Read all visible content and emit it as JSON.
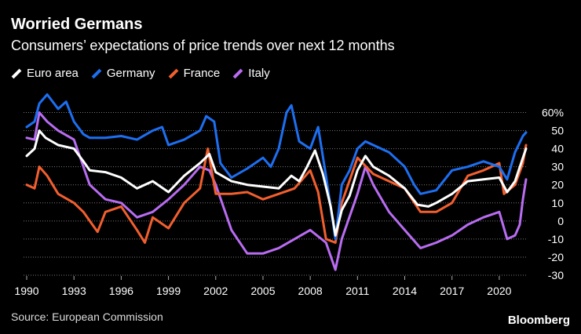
{
  "header": {
    "title": "Worried Germans",
    "subtitle": "Consumers’ expectations of price trends over next 12 months"
  },
  "footer": {
    "source": "Source: European Commission",
    "brand": "Bloomberg"
  },
  "chart_data": {
    "type": "line",
    "title": "Worried Germans",
    "subtitle": "Consumers’ expectations of price trends over next 12 months",
    "xlabel": "",
    "ylabel": "",
    "xlim": [
      1989.8,
      2021.8
    ],
    "ylim": [
      -30,
      65
    ],
    "x_ticks": [
      1990,
      1993,
      1996,
      1999,
      2002,
      2005,
      2008,
      2011,
      2014,
      2017,
      2020
    ],
    "x_tick_labels": [
      "1990",
      "1993",
      "1996",
      "1999",
      "2002",
      "2005",
      "2008",
      "2011",
      "2014",
      "2017",
      "2020"
    ],
    "y_ticks": [
      -30,
      -20,
      -10,
      0,
      10,
      20,
      30,
      40,
      50,
      60
    ],
    "y_tick_labels": [
      "-30",
      "-20",
      "-10",
      "0",
      "10",
      "20",
      "30",
      "40",
      "50",
      "60%"
    ],
    "grid": true,
    "legend_position": "top-left",
    "series": [
      {
        "name": "Euro area",
        "color": "#ffffff",
        "points": [
          [
            1990,
            36
          ],
          [
            1990.5,
            40
          ],
          [
            1990.8,
            50
          ],
          [
            1991.2,
            46
          ],
          [
            1992,
            42
          ],
          [
            1993,
            40
          ],
          [
            1993.6,
            33
          ],
          [
            1994,
            28
          ],
          [
            1995,
            27
          ],
          [
            1996,
            24
          ],
          [
            1997,
            18
          ],
          [
            1998,
            22
          ],
          [
            1999,
            16
          ],
          [
            2000,
            25
          ],
          [
            2001,
            32
          ],
          [
            2001.6,
            37
          ],
          [
            2002,
            27
          ],
          [
            2003,
            22
          ],
          [
            2004,
            20
          ],
          [
            2005,
            19
          ],
          [
            2006,
            18
          ],
          [
            2006.8,
            25
          ],
          [
            2007.3,
            22
          ],
          [
            2007.8,
            30
          ],
          [
            2008.3,
            39
          ],
          [
            2008.8,
            26
          ],
          [
            2009.3,
            8
          ],
          [
            2009.6,
            -8
          ],
          [
            2010,
            6
          ],
          [
            2010.5,
            14
          ],
          [
            2011,
            28
          ],
          [
            2011.5,
            36
          ],
          [
            2012,
            30
          ],
          [
            2013,
            25
          ],
          [
            2014,
            18
          ],
          [
            2014.8,
            9
          ],
          [
            2015.5,
            8
          ],
          [
            2016,
            10
          ],
          [
            2017,
            15
          ],
          [
            2018,
            22
          ],
          [
            2019,
            23
          ],
          [
            2020,
            24
          ],
          [
            2020.5,
            16
          ],
          [
            2021,
            22
          ],
          [
            2021.5,
            35
          ],
          [
            2021.7,
            40
          ]
        ]
      },
      {
        "name": "Germany",
        "color": "#1d6ff2",
        "points": [
          [
            1990,
            52
          ],
          [
            1990.5,
            55
          ],
          [
            1990.8,
            65
          ],
          [
            1991.3,
            70
          ],
          [
            1992,
            62
          ],
          [
            1992.5,
            66
          ],
          [
            1993,
            55
          ],
          [
            1993.6,
            48
          ],
          [
            1994,
            46
          ],
          [
            1995,
            46
          ],
          [
            1996,
            47
          ],
          [
            1997,
            45
          ],
          [
            1998,
            50
          ],
          [
            1998.6,
            52
          ],
          [
            1999,
            42
          ],
          [
            2000,
            45
          ],
          [
            2001,
            50
          ],
          [
            2001.4,
            58
          ],
          [
            2001.9,
            55
          ],
          [
            2002.3,
            32
          ],
          [
            2003,
            24
          ],
          [
            2004,
            29
          ],
          [
            2005,
            35
          ],
          [
            2005.5,
            30
          ],
          [
            2006,
            40
          ],
          [
            2006.5,
            60
          ],
          [
            2006.8,
            64
          ],
          [
            2007.3,
            44
          ],
          [
            2008,
            40
          ],
          [
            2008.5,
            52
          ],
          [
            2009,
            25
          ],
          [
            2009.6,
            -10
          ],
          [
            2010,
            20
          ],
          [
            2010.5,
            28
          ],
          [
            2011,
            40
          ],
          [
            2011.5,
            44
          ],
          [
            2012,
            42
          ],
          [
            2013,
            38
          ],
          [
            2014,
            30
          ],
          [
            2014.6,
            20
          ],
          [
            2015,
            15
          ],
          [
            2016,
            17
          ],
          [
            2017,
            28
          ],
          [
            2018,
            30
          ],
          [
            2019,
            33
          ],
          [
            2020,
            30
          ],
          [
            2020.5,
            23
          ],
          [
            2021,
            38
          ],
          [
            2021.5,
            47
          ],
          [
            2021.7,
            49
          ]
        ]
      },
      {
        "name": "France",
        "color": "#f25f2e",
        "points": [
          [
            1990,
            20
          ],
          [
            1990.5,
            18
          ],
          [
            1990.8,
            30
          ],
          [
            1991.3,
            25
          ],
          [
            1992,
            15
          ],
          [
            1993,
            10
          ],
          [
            1993.6,
            5
          ],
          [
            1994,
            0
          ],
          [
            1994.5,
            -6
          ],
          [
            1995,
            5
          ],
          [
            1996,
            8
          ],
          [
            1997,
            -5
          ],
          [
            1997.5,
            -12
          ],
          [
            1998,
            2
          ],
          [
            1999,
            -4
          ],
          [
            2000,
            10
          ],
          [
            2001,
            18
          ],
          [
            2001.5,
            40
          ],
          [
            2002,
            15
          ],
          [
            2003,
            15
          ],
          [
            2004,
            16
          ],
          [
            2005,
            12
          ],
          [
            2006,
            15
          ],
          [
            2007,
            18
          ],
          [
            2008,
            28
          ],
          [
            2008.5,
            16
          ],
          [
            2009,
            -10
          ],
          [
            2009.6,
            -12
          ],
          [
            2010,
            10
          ],
          [
            2011,
            35
          ],
          [
            2012,
            26
          ],
          [
            2013,
            22
          ],
          [
            2014,
            18
          ],
          [
            2015,
            5
          ],
          [
            2016,
            5
          ],
          [
            2017,
            10
          ],
          [
            2018,
            25
          ],
          [
            2019,
            28
          ],
          [
            2020,
            32
          ],
          [
            2020.3,
            15
          ],
          [
            2021,
            20
          ],
          [
            2021.5,
            32
          ],
          [
            2021.7,
            42
          ]
        ]
      },
      {
        "name": "Italy",
        "color": "#b96cf2",
        "points": [
          [
            1990,
            46
          ],
          [
            1990.5,
            45
          ],
          [
            1990.8,
            60
          ],
          [
            1991.3,
            55
          ],
          [
            1992,
            50
          ],
          [
            1993,
            45
          ],
          [
            1994,
            20
          ],
          [
            1995,
            12
          ],
          [
            1996,
            10
          ],
          [
            1997,
            2
          ],
          [
            1998,
            5
          ],
          [
            1999,
            12
          ],
          [
            2000,
            20
          ],
          [
            2001,
            30
          ],
          [
            2001.6,
            28
          ],
          [
            2002,
            20
          ],
          [
            2003,
            -5
          ],
          [
            2004,
            -18
          ],
          [
            2005,
            -18
          ],
          [
            2006,
            -15
          ],
          [
            2007,
            -10
          ],
          [
            2008,
            -5
          ],
          [
            2009,
            -12
          ],
          [
            2009.6,
            -27
          ],
          [
            2010,
            -10
          ],
          [
            2011,
            15
          ],
          [
            2011.5,
            30
          ],
          [
            2012,
            20
          ],
          [
            2013,
            5
          ],
          [
            2014,
            -5
          ],
          [
            2015,
            -15
          ],
          [
            2016,
            -12
          ],
          [
            2017,
            -8
          ],
          [
            2018,
            -2
          ],
          [
            2019,
            2
          ],
          [
            2020,
            5
          ],
          [
            2020.5,
            -10
          ],
          [
            2021,
            -8
          ],
          [
            2021.3,
            -2
          ],
          [
            2021.5,
            12
          ],
          [
            2021.7,
            23
          ]
        ]
      }
    ]
  }
}
